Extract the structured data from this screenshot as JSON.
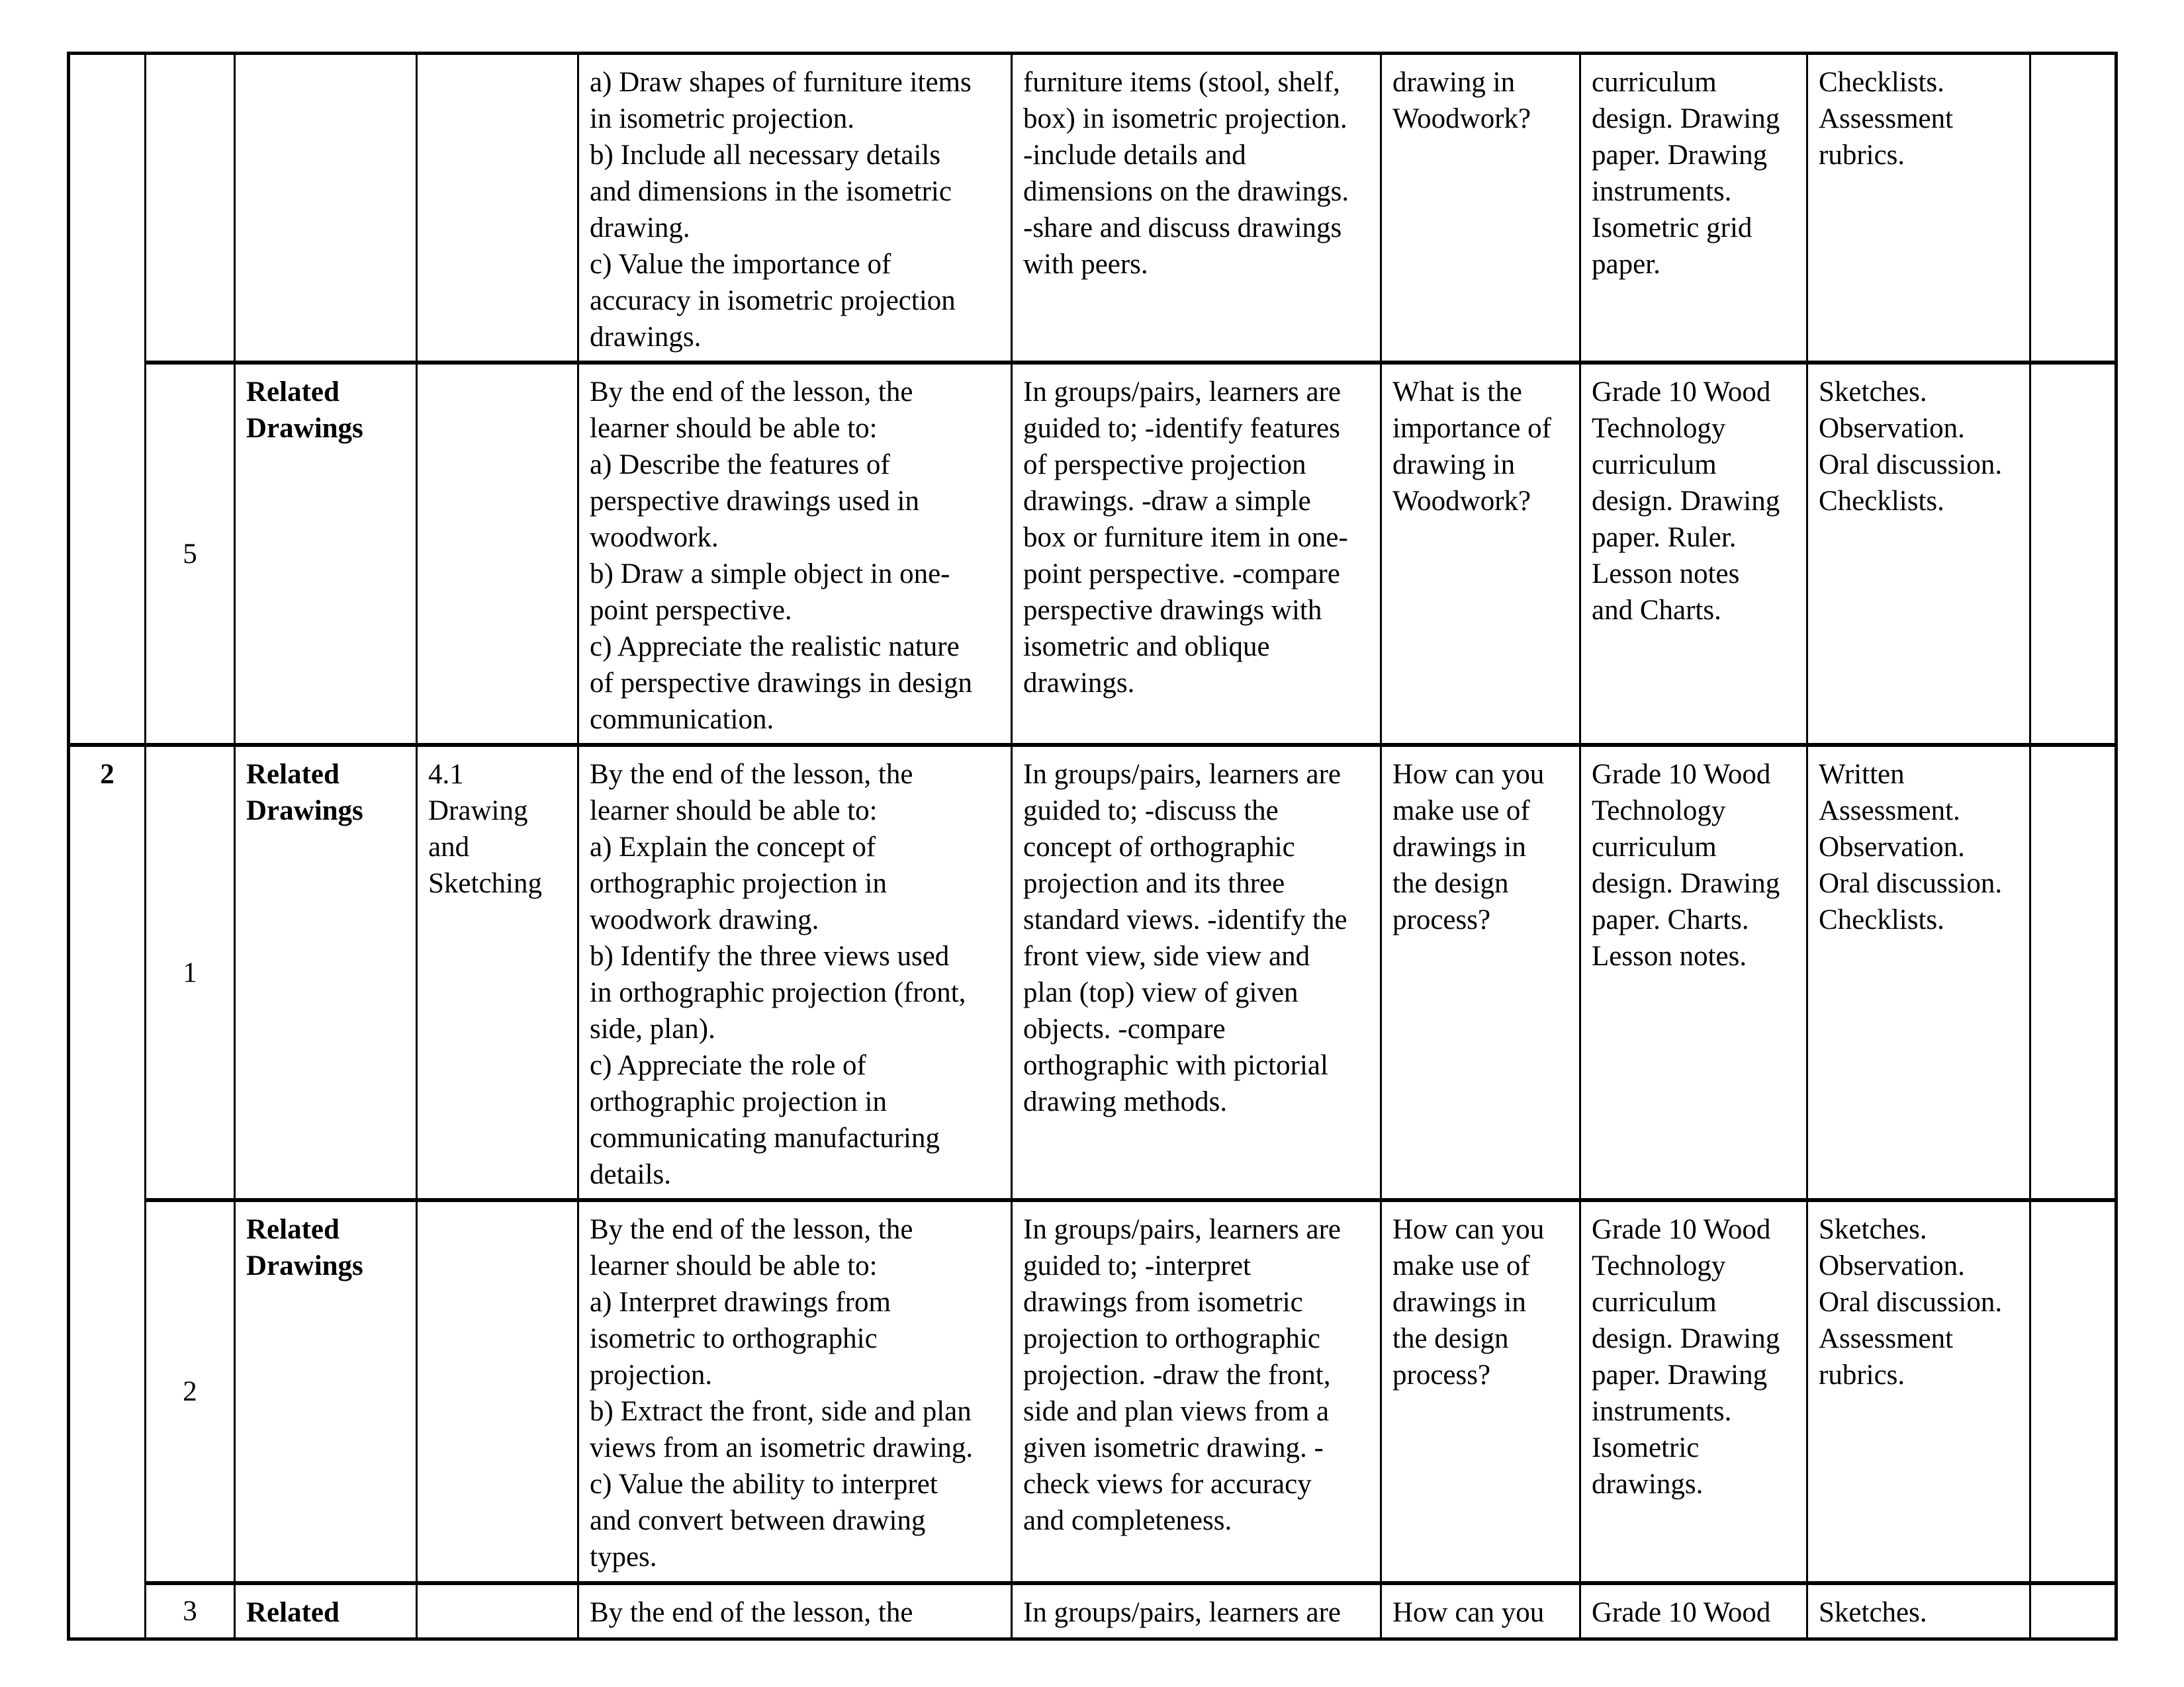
{
  "rows": [
    {
      "week": "",
      "lesson": "",
      "strand": "",
      "sub_strand": "",
      "outcomes": "a) Draw shapes of furniture items\nin isometric projection.\nb) Include all necessary details\nand dimensions in the isometric\ndrawing.\nc) Value the importance of\naccuracy in isometric projection\ndrawings.",
      "experiences": "furniture items (stool, shelf,\nbox) in isometric projection.\n-include details and\ndimensions on the drawings.\n-share and discuss drawings\nwith peers.",
      "inquiry": "drawing in\nWoodwork?",
      "resources": "curriculum\ndesign. Drawing\npaper. Drawing\ninstruments.\nIsometric grid\npaper.",
      "assessment": "Checklists.\nAssessment\nrubrics.",
      "reflection": ""
    },
    {
      "lesson": "5",
      "strand": "Related\nDrawings",
      "sub_strand": "",
      "outcomes": "By the end of the lesson, the\nlearner should be able to:\na) Describe the features of\nperspective drawings used in\nwoodwork.\nb) Draw a simple object in one-\npoint perspective.\nc) Appreciate the realistic nature\nof perspective drawings in design\ncommunication.",
      "experiences": "In groups/pairs, learners are\nguided to; -identify features\nof perspective projection\ndrawings. -draw a simple\nbox or furniture item in one-\npoint perspective. -compare\nperspective drawings with\nisometric and oblique\ndrawings.",
      "inquiry": "What is the\nimportance of\ndrawing in\nWoodwork?",
      "resources": "Grade 10 Wood\nTechnology\ncurriculum\ndesign. Drawing\npaper. Ruler.\nLesson notes\nand Charts.",
      "assessment": "Sketches.\nObservation.\nOral discussion.\nChecklists.",
      "reflection": ""
    },
    {
      "week": "2",
      "lesson": "1",
      "strand": "Related\nDrawings",
      "sub_strand": "4.1\nDrawing\nand\nSketching",
      "outcomes": "By the end of the lesson, the\nlearner should be able to:\na) Explain the concept of\northographic projection in\nwoodwork drawing.\nb) Identify the three views used\nin orthographic projection (front,\nside, plan).\nc) Appreciate the role of\northographic projection in\ncommunicating manufacturing\ndetails.",
      "experiences": "In groups/pairs, learners are\nguided to; -discuss the\nconcept of orthographic\nprojection and its three\nstandard views. -identify the\nfront view, side view and\nplan (top) view of given\nobjects. -compare\northographic with pictorial\ndrawing methods.",
      "inquiry": "How can you\nmake use of\ndrawings in\nthe design\nprocess?",
      "resources": "Grade 10 Wood\nTechnology\ncurriculum\ndesign. Drawing\npaper. Charts.\nLesson notes.",
      "assessment": "Written\nAssessment.\nObservation.\nOral discussion.\nChecklists.",
      "reflection": ""
    },
    {
      "lesson": "2",
      "strand": "Related\nDrawings",
      "sub_strand": "",
      "outcomes": "By the end of the lesson, the\nlearner should be able to:\n a) Interpret drawings from\nisometric to orthographic\nprojection.\nb) Extract the front, side and plan\nviews from an isometric drawing.\nc) Value the ability to interpret\nand convert between drawing\ntypes.",
      "experiences": "In groups/pairs, learners are\nguided to; -interpret\ndrawings from isometric\nprojection to orthographic\nprojection. -draw the front,\nside and plan views from a\ngiven isometric drawing. -\ncheck views for accuracy\nand completeness.",
      "inquiry": "How can you\nmake use of\ndrawings in\nthe design\nprocess?",
      "resources": "Grade 10 Wood\nTechnology\ncurriculum\ndesign. Drawing\npaper. Drawing\ninstruments.\nIsometric\ndrawings.",
      "assessment": "Sketches.\nObservation.\nOral discussion.\nAssessment\nrubrics.",
      "reflection": ""
    },
    {
      "lesson": "3",
      "strand": "Related",
      "sub_strand": "",
      "outcomes": "By the end of the lesson, the",
      "experiences": "In groups/pairs, learners are",
      "inquiry": "How can you",
      "resources": "Grade 10 Wood",
      "assessment": "Sketches.",
      "reflection": ""
    }
  ]
}
